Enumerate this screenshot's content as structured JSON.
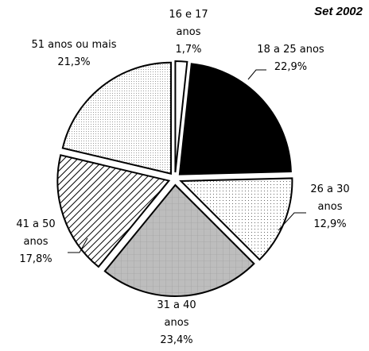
{
  "chart_data": {
    "type": "pie",
    "title": "Set 2002",
    "categories": [
      "16 e 17 anos",
      "18 a 25 anos",
      "26 a 30 anos",
      "31 a 40 anos",
      "41 a 50 anos",
      "51 anos ou mais"
    ],
    "values": [
      1.7,
      22.9,
      12.9,
      23.4,
      17.8,
      21.3
    ],
    "value_labels": [
      "1,7%",
      "22,9%",
      "12,9%",
      "23,4%",
      "17,8%",
      "21,3%"
    ],
    "colors": [
      "#ffffff",
      "#000000",
      "url(#dots)",
      "url(#gridpat)",
      "url(#hatch)",
      "url(#fine)"
    ]
  }
}
